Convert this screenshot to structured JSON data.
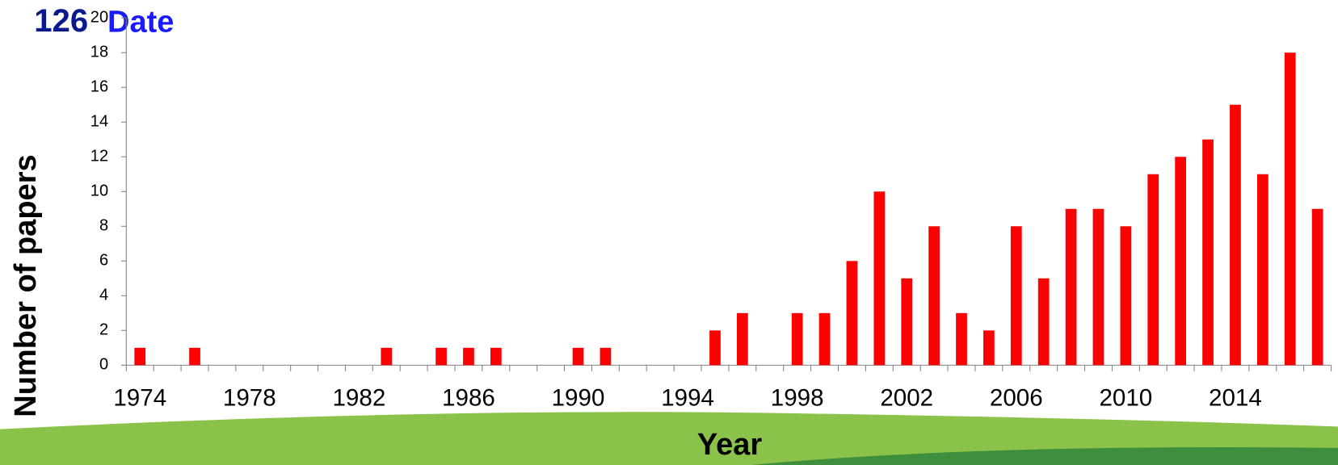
{
  "slide": {
    "number": "126",
    "title": "Date"
  },
  "chart_data": {
    "type": "bar",
    "x_label": "Year",
    "y_label": "Number of papers",
    "categories": [
      "1974",
      null,
      null,
      null,
      "1978",
      null,
      null,
      null,
      "1982",
      null,
      null,
      null,
      "1986",
      null,
      null,
      null,
      "1990",
      null,
      null,
      null,
      "1994",
      null,
      null,
      null,
      "1998",
      null,
      null,
      null,
      "2002",
      null,
      null,
      null,
      "2006",
      null,
      null,
      null,
      "2010",
      null,
      null,
      null,
      "2014",
      null,
      null,
      null
    ],
    "values": [
      1,
      0,
      1,
      0,
      0,
      0,
      0,
      0,
      0,
      1,
      0,
      1,
      1,
      1,
      0,
      0,
      1,
      1,
      0,
      0,
      0,
      2,
      3,
      0,
      3,
      3,
      6,
      10,
      5,
      8,
      3,
      2,
      8,
      5,
      9,
      9,
      8,
      11,
      12,
      13,
      15,
      11,
      18,
      9
    ],
    "color": "#ff0000",
    "ylim": [
      0,
      20
    ],
    "yticks": [
      0,
      2,
      4,
      6,
      8,
      10,
      12,
      14,
      16,
      18,
      20
    ],
    "grid": false
  }
}
